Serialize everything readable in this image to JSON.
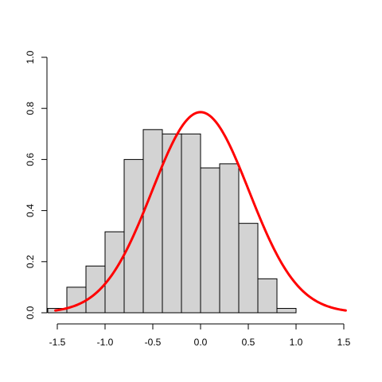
{
  "chart_data": {
    "type": "bar",
    "title": "",
    "xlabel": "",
    "ylabel": "",
    "xlim": [
      -1.7,
      1.6
    ],
    "ylim": [
      0,
      1.0
    ],
    "x_ticks": [
      "-1.5",
      "-1.0",
      "-0.5",
      "0.0",
      "0.5",
      "1.0",
      "1.5"
    ],
    "y_ticks": [
      "0.0",
      "0.2",
      "0.4",
      "0.6",
      "0.8",
      "1.0"
    ],
    "grid": false,
    "series": [
      {
        "type": "histogram",
        "bin_edges": [
          -1.6,
          -1.4,
          -1.2,
          -1.0,
          -0.8,
          -0.6,
          -0.4,
          -0.2,
          0.0,
          0.2,
          0.4,
          0.6,
          0.8,
          1.0
        ],
        "densities": [
          0.017,
          0.1,
          0.183,
          0.317,
          0.6,
          0.717,
          0.7,
          0.7,
          0.567,
          0.583,
          0.35,
          0.133,
          0.017
        ],
        "color": "#d3d3d3"
      },
      {
        "type": "line",
        "curve": "normal-density",
        "mean": 0.0,
        "sd": 0.508,
        "x_range": [
          -1.52,
          1.52
        ],
        "color": "#ff0000"
      }
    ]
  }
}
